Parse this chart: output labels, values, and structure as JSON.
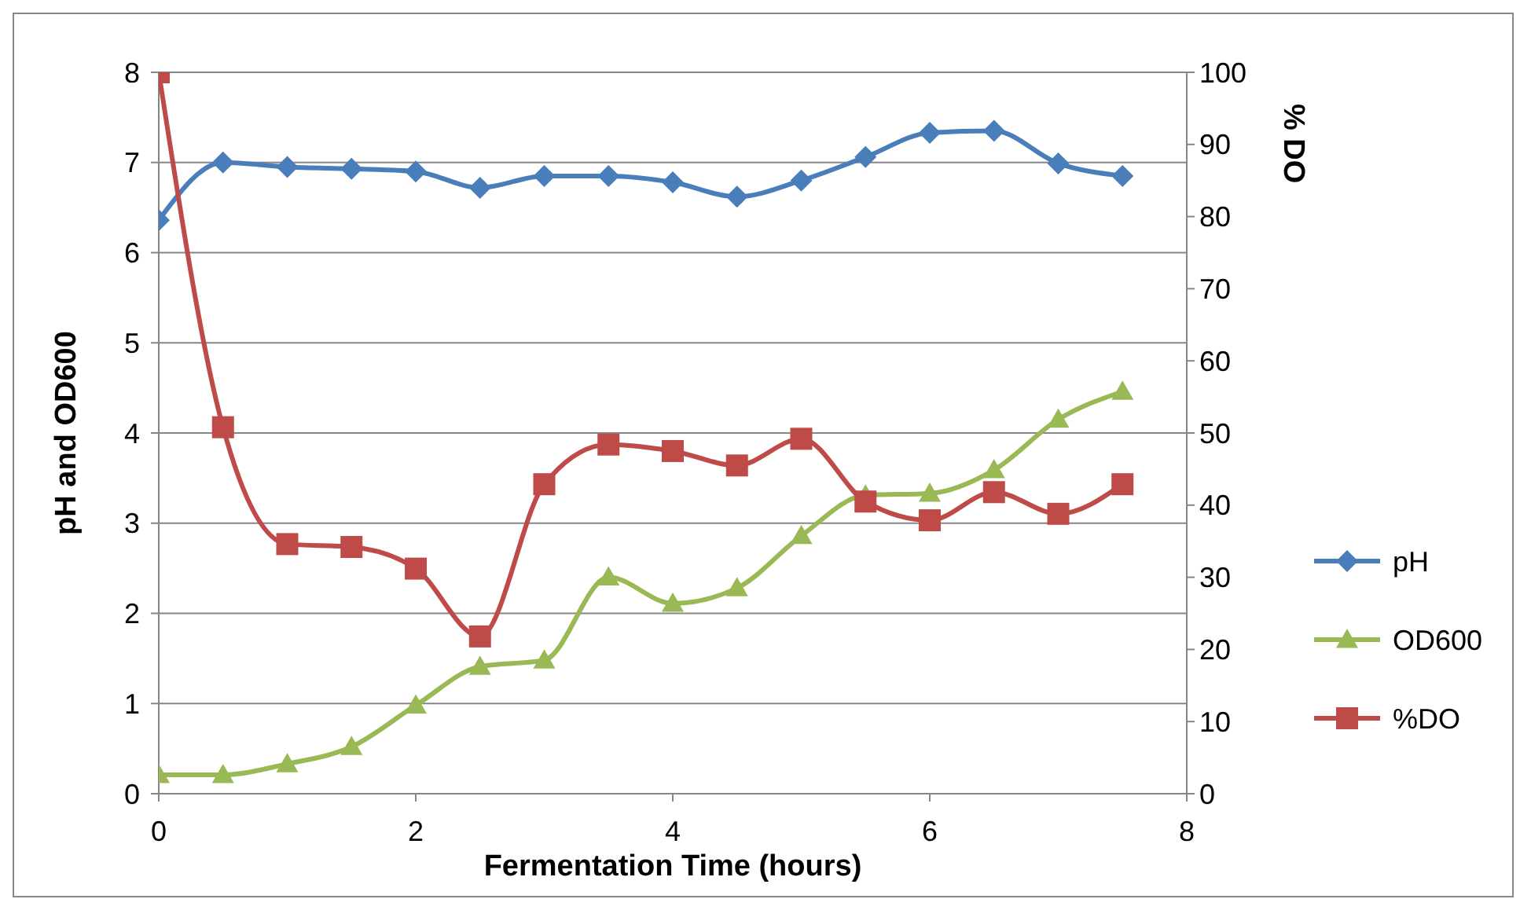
{
  "chart_data": {
    "type": "line",
    "xlabel": "Fermentation Time (hours)",
    "ylabel": "pH and OD600",
    "y2label": "% DO",
    "x": [
      0,
      0.5,
      1,
      1.5,
      2,
      2.5,
      3,
      3.5,
      4,
      4.5,
      5,
      5.5,
      6,
      6.5,
      7,
      7.5
    ],
    "series": [
      {
        "name": "pH",
        "color": "#4a7ebb",
        "marker": "diamond",
        "values": [
          6.36,
          7.0,
          6.95,
          6.93,
          6.9,
          6.72,
          6.85,
          6.85,
          6.78,
          6.62,
          6.8,
          7.06,
          7.33,
          7.35,
          6.99,
          6.85
        ]
      },
      {
        "name": "OD600",
        "color": "#98b954",
        "marker": "triangle",
        "values": [
          0.21,
          0.21,
          0.33,
          0.52,
          0.98,
          1.41,
          1.48,
          2.4,
          2.11,
          2.28,
          2.86,
          3.31,
          3.33,
          3.59,
          4.15,
          4.46
        ]
      },
      {
        "name": "%DO",
        "color": "#be4b48",
        "marker": "square",
        "axis": "y2",
        "values": [
          100,
          50.8,
          34.6,
          34.2,
          31.2,
          21.8,
          42.9,
          48.4,
          47.5,
          45.5,
          49.2,
          40.5,
          37.9,
          41.8,
          38.8,
          42.9
        ]
      }
    ],
    "xlim": [
      0,
      8
    ],
    "xticks": [
      0,
      2,
      4,
      6,
      8
    ],
    "ylim": [
      0,
      8
    ],
    "yticks": [
      0,
      1,
      2,
      3,
      4,
      5,
      6,
      7,
      8
    ],
    "y2lim": [
      0,
      100
    ],
    "y2ticks": [
      0,
      10,
      20,
      30,
      40,
      50,
      60,
      70,
      80,
      90,
      100
    ],
    "grid": "y",
    "legend": "right"
  }
}
